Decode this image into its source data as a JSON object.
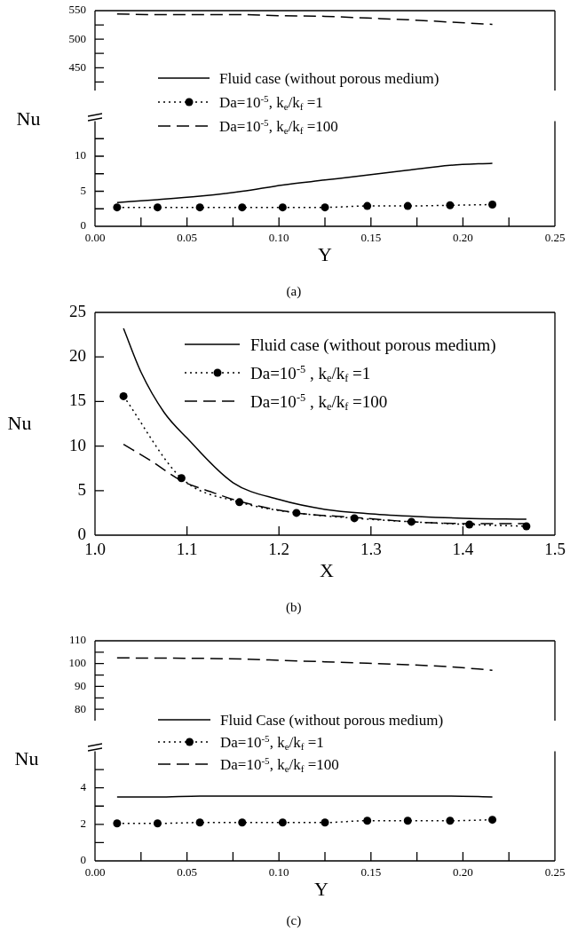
{
  "chart_data": [
    {
      "type": "line",
      "xlim": [
        0,
        0.25
      ],
      "ylim": [
        410,
        550
      ],
      "yticks": [
        {
          "value": 425,
          "label": null
        },
        450,
        {
          "value": 475,
          "label": null
        },
        500,
        {
          "value": 525,
          "label": null
        },
        550
      ],
      "tick_labels": "y",
      "legend": "bottom",
      "x": [
        0.012,
        0.034,
        0.057,
        0.08,
        0.102,
        0.125,
        0.148,
        0.17,
        0.193,
        0.216
      ],
      "series": [
        {
          "name": "Da=10$^{-5}$, k$_{e}$/k$_{f}$ =100",
          "color": "#000000",
          "line_style": "dashed",
          "marker": "none",
          "values": [
            544,
            543,
            543,
            543,
            541,
            540,
            537,
            534,
            530,
            526
          ]
        }
      ]
    },
    {
      "type": "line",
      "xlabel": "Y",
      "ylabel": "Nu",
      "xlim": [
        0,
        0.25
      ],
      "xticks": [
        {
          "value": 0,
          "label": "0.00"
        },
        {
          "value": 0.025,
          "label": null
        },
        {
          "value": 0.05,
          "label": "0.05"
        },
        {
          "value": 0.075,
          "label": null
        },
        {
          "value": 0.1,
          "label": "0.10"
        },
        {
          "value": 0.125,
          "label": null
        },
        {
          "value": 0.15,
          "label": "0.15"
        },
        {
          "value": 0.175,
          "label": null
        },
        {
          "value": 0.2,
          "label": "0.20"
        },
        {
          "value": 0.225,
          "label": null
        },
        {
          "value": 0.25,
          "label": "0.25"
        }
      ],
      "ylim": [
        0,
        15
      ],
      "yticks": [
        0,
        {
          "value": 2.5,
          "label": null
        },
        5,
        {
          "value": 7.5,
          "label": null
        },
        10,
        {
          "value": 12.5,
          "label": null
        }
      ],
      "legend": "top",
      "annotations": [
        "(a)"
      ],
      "x": [
        0.012,
        0.034,
        0.057,
        0.08,
        0.102,
        0.125,
        0.148,
        0.17,
        0.193,
        0.216
      ],
      "series": [
        {
          "name": "Fluid case (without porous medium)",
          "color": "#000000",
          "line_style": "solid",
          "marker": "none",
          "values": [
            3.4,
            3.8,
            4.3,
            5.0,
            5.9,
            6.6,
            7.3,
            8.0,
            8.7,
            9.0
          ]
        },
        {
          "name": "Da=10$^{-5}$, k$_{e}$/k$_{f}$ =1",
          "color": "#000000",
          "line_style": "dotted",
          "marker": "circle",
          "values": [
            2.7,
            2.7,
            2.7,
            2.7,
            2.7,
            2.7,
            2.9,
            2.9,
            3.0,
            3.1
          ]
        }
      ]
    },
    {
      "type": "line",
      "xlabel": "X",
      "ylabel": "Nu",
      "xlim": [
        1,
        1.5
      ],
      "xticks": [
        {
          "value": 1,
          "label": "1.0"
        },
        1.1,
        1.2,
        1.3,
        1.4,
        1.5
      ],
      "ylim": [
        0,
        25
      ],
      "yticks": [
        0,
        5,
        10,
        15,
        20,
        25
      ],
      "legend": "top right",
      "annotations": [
        "(b)"
      ],
      "series": [
        {
          "name": "Fluid case (without porous medium)",
          "color": "#000000",
          "line_style": "solid",
          "marker": "none",
          "x": [
            1.031,
            1.05,
            1.075,
            1.1,
            1.15,
            1.2,
            1.25,
            1.3,
            1.35,
            1.4,
            1.469
          ],
          "values": [
            23.2,
            18.3,
            13.8,
            10.9,
            5.9,
            4.0,
            2.9,
            2.4,
            2.1,
            1.9,
            1.8
          ]
        },
        {
          "name": "Da=10$^{-5}$ , k$_{e}$/k$_{f}$ =1",
          "color": "#000000",
          "line_style": "dotted",
          "marker": "circle",
          "x": [
            1.031,
            1.094,
            1.157,
            1.219,
            1.282,
            1.344,
            1.407,
            1.469
          ],
          "values": [
            15.6,
            6.4,
            3.7,
            2.5,
            1.9,
            1.5,
            1.2,
            1.0
          ]
        },
        {
          "name": "Da=10$^{-5}$ , k$_{e}$/k$_{f}$ =100",
          "color": "#000000",
          "line_style": "dashed",
          "marker": "none",
          "x": [
            1.031,
            1.06,
            1.094,
            1.125,
            1.157,
            1.219,
            1.282,
            1.344,
            1.407,
            1.469
          ],
          "values": [
            10.2,
            8.4,
            6.1,
            4.9,
            3.8,
            2.5,
            2.0,
            1.5,
            1.3,
            1.3
          ]
        }
      ]
    },
    {
      "type": "line",
      "xlim": [
        0,
        0.25
      ],
      "ylim": [
        75,
        110
      ],
      "yticks": [
        80,
        {
          "value": 85,
          "label": null
        },
        90,
        {
          "value": 95,
          "label": null
        },
        100,
        {
          "value": 105,
          "label": null
        },
        110
      ],
      "tick_labels": "y",
      "legend": "bottom",
      "x": [
        0.012,
        0.034,
        0.057,
        0.08,
        0.102,
        0.125,
        0.148,
        0.17,
        0.193,
        0.216
      ],
      "series": [
        {
          "name": "Da=10$^{-5}$, k$_{e}$/k$_{f}$ =100",
          "color": "#000000",
          "line_style": "dashed",
          "marker": "none",
          "values": [
            102.5,
            102.4,
            102.3,
            102,
            101.4,
            100.8,
            100.2,
            99.5,
            98.6,
            97.1
          ]
        }
      ]
    },
    {
      "type": "line",
      "xlabel": "Y",
      "ylabel": "Nu",
      "xlim": [
        0,
        0.25
      ],
      "xticks": [
        {
          "value": 0,
          "label": "0.00"
        },
        {
          "value": 0.025,
          "label": null
        },
        {
          "value": 0.05,
          "label": "0.05"
        },
        {
          "value": 0.075,
          "label": null
        },
        {
          "value": 0.1,
          "label": "0.10"
        },
        {
          "value": 0.125,
          "label": null
        },
        {
          "value": 0.15,
          "label": "0.15"
        },
        {
          "value": 0.175,
          "label": null
        },
        {
          "value": 0.2,
          "label": "0.20"
        },
        {
          "value": 0.225,
          "label": null
        },
        {
          "value": 0.25,
          "label": "0.25"
        }
      ],
      "ylim": [
        0,
        6
      ],
      "yticks": [
        0,
        {
          "value": 1,
          "label": null
        },
        2,
        {
          "value": 3,
          "label": null
        },
        4,
        {
          "value": 5,
          "label": null
        }
      ],
      "legend": "top",
      "annotations": [
        "(c)"
      ],
      "x": [
        0.012,
        0.034,
        0.057,
        0.08,
        0.102,
        0.125,
        0.148,
        0.17,
        0.193,
        0.216
      ],
      "series": [
        {
          "name": "Fluid Case (without porous medium)",
          "color": "#000000",
          "line_style": "solid",
          "marker": "none",
          "values": [
            3.5,
            3.5,
            3.55,
            3.55,
            3.55,
            3.55,
            3.55,
            3.55,
            3.55,
            3.5
          ]
        },
        {
          "name": "Da=10$^{-5}$, k$_{e}$/k$_{f}$ =1",
          "color": "#000000",
          "line_style": "dotted",
          "marker": "circle",
          "values": [
            2.05,
            2.05,
            2.1,
            2.1,
            2.1,
            2.1,
            2.2,
            2.2,
            2.2,
            2.25
          ]
        }
      ]
    }
  ]
}
